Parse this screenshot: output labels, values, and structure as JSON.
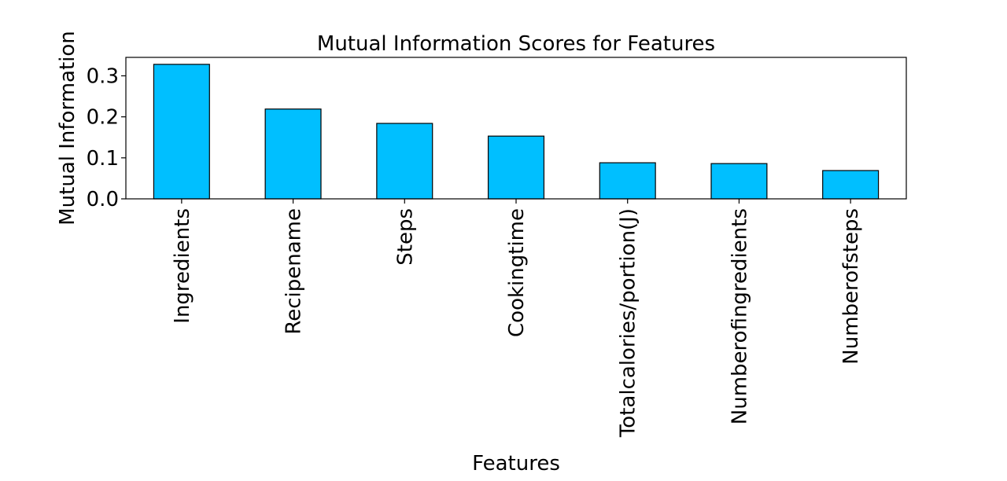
{
  "chart_data": {
    "type": "bar",
    "title": "Mutual Information Scores for Features",
    "xlabel": "Features",
    "ylabel": "Mutual Information",
    "categories": [
      "Ingredients",
      "Recipename",
      "Steps",
      "Cookingtime",
      "Totalcalories/portion(J)",
      "Numberofingredients",
      "Numberofsteps"
    ],
    "values": [
      0.328,
      0.219,
      0.184,
      0.153,
      0.088,
      0.086,
      0.069
    ],
    "ylim": [
      0,
      0.345
    ],
    "yticks": [
      0.0,
      0.1,
      0.2,
      0.3
    ],
    "ytick_labels": [
      "0.0",
      "0.1",
      "0.2",
      "0.3"
    ],
    "bar_color": "#00bfff",
    "grid": false,
    "legend": "none"
  }
}
